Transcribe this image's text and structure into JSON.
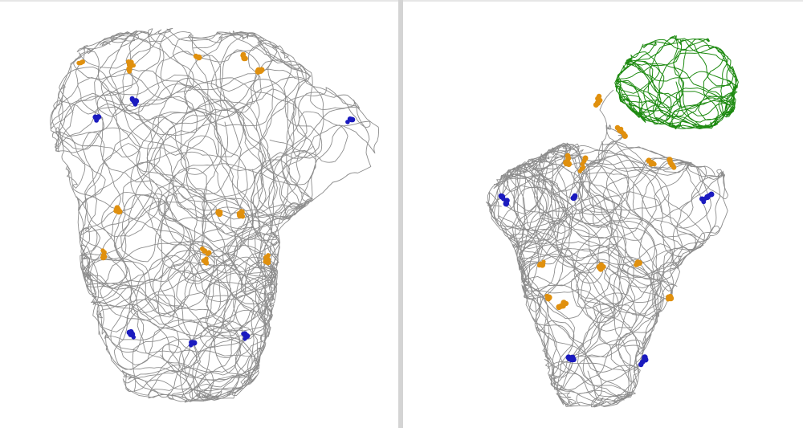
{
  "colors": {
    "background": "#ffffff",
    "divider": "#d4d4d4",
    "backbone": "#8d8d8d",
    "highlight_orange": "#e0900e",
    "highlight_blue": "#1b1bbf",
    "bound_protein": "#1d8a10"
  },
  "panels": [
    {
      "id": "left",
      "representation": "backbone-trace",
      "orange_clusters": 13,
      "blue_clusters": 6,
      "bound_protein": false
    },
    {
      "id": "right",
      "representation": "backbone-trace",
      "orange_clusters": 12,
      "blue_clusters": 5,
      "bound_protein": true
    }
  ]
}
